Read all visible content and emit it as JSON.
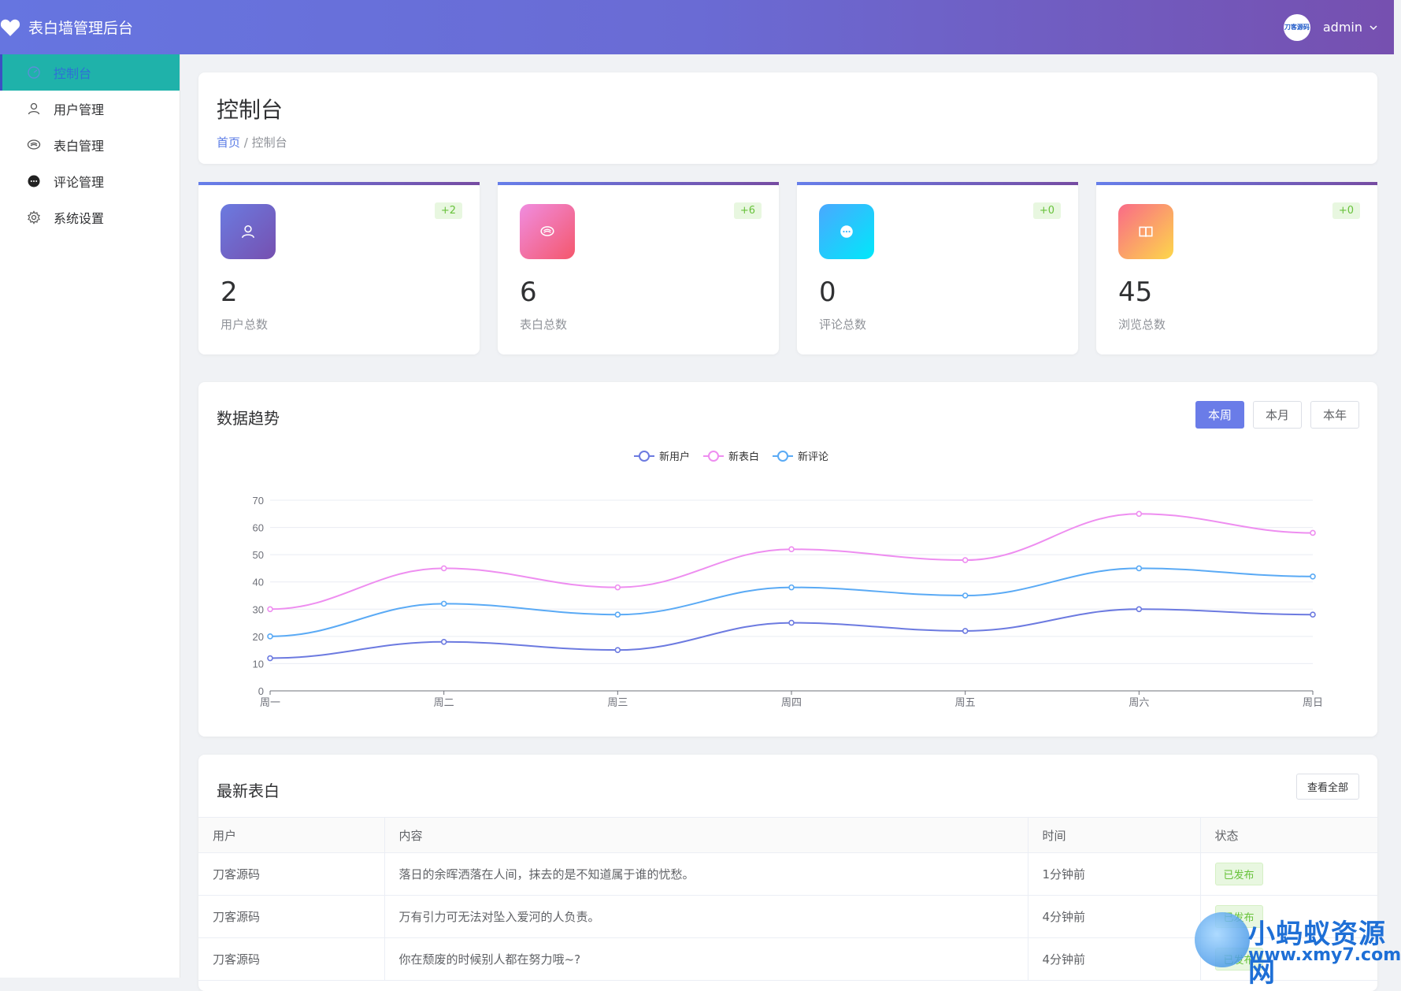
{
  "header": {
    "app_title": "表白墙管理后台",
    "avatar_text": "刀客源码",
    "user_name": "admin"
  },
  "sidebar": {
    "items": [
      {
        "label": "控制台",
        "icon": "dashboard-icon",
        "active": true
      },
      {
        "label": "用户管理",
        "icon": "user-icon"
      },
      {
        "label": "表白管理",
        "icon": "heart-chat-icon"
      },
      {
        "label": "评论管理",
        "icon": "comment-icon"
      },
      {
        "label": "系统设置",
        "icon": "gear-icon"
      }
    ]
  },
  "page": {
    "title": "控制台",
    "breadcrumb_home": "首页",
    "breadcrumb_sep": "/",
    "breadcrumb_current": "控制台"
  },
  "stats": [
    {
      "value": "2",
      "label": "用户总数",
      "delta": "+2",
      "icon": "user-icon",
      "gradient": [
        "#6b7be0",
        "#7650b0"
      ]
    },
    {
      "value": "6",
      "label": "表白总数",
      "delta": "+6",
      "icon": "heart-chat-icon",
      "gradient": [
        "#f08de0",
        "#f4576c"
      ]
    },
    {
      "value": "0",
      "label": "评论总数",
      "delta": "+0",
      "icon": "comment-icon",
      "gradient": [
        "#4aa8ff",
        "#00e8fa"
      ]
    },
    {
      "value": "45",
      "label": "浏览总数",
      "delta": "+0",
      "icon": "book-icon",
      "gradient": [
        "#f96a88",
        "#fdd74a"
      ]
    }
  ],
  "chart_section": {
    "title": "数据趋势",
    "ranges": [
      "本周",
      "本月",
      "本年"
    ],
    "active_range": "本周"
  },
  "chart_data": {
    "type": "line",
    "categories": [
      "周一",
      "周二",
      "周三",
      "周四",
      "周五",
      "周六",
      "周日"
    ],
    "series": [
      {
        "name": "新用户",
        "color": "#6c7ae0",
        "values": [
          12,
          18,
          15,
          25,
          22,
          30,
          28
        ]
      },
      {
        "name": "新表白",
        "color": "#ee8ef0",
        "values": [
          30,
          45,
          38,
          52,
          48,
          65,
          58
        ]
      },
      {
        "name": "新评论",
        "color": "#5aaaf5",
        "values": [
          20,
          32,
          28,
          38,
          35,
          45,
          42
        ]
      }
    ],
    "ylim": [
      0,
      70
    ],
    "yticks": [
      0,
      10,
      20,
      30,
      40,
      50,
      60,
      70
    ],
    "legend": "top-center",
    "grid": true
  },
  "table_section": {
    "title": "最新表白",
    "view_all": "查看全部",
    "columns": [
      "用户",
      "内容",
      "时间",
      "状态"
    ],
    "rows": [
      {
        "user": "刀客源码",
        "content": "落日的余晖洒落在人间，抹去的是不知道属于谁的忧愁。",
        "time": "1分钟前",
        "status": "已发布"
      },
      {
        "user": "刀客源码",
        "content": "万有引力可无法对坠入爱河的人负责。",
        "time": "4分钟前",
        "status": "已发布"
      },
      {
        "user": "刀客源码",
        "content": "你在颓废的时候别人都在努力哦~?",
        "time": "4分钟前",
        "status": "已发布"
      }
    ]
  },
  "watermark": {
    "title": "小蚂蚁资源网",
    "url": "www.xmy7.com"
  }
}
